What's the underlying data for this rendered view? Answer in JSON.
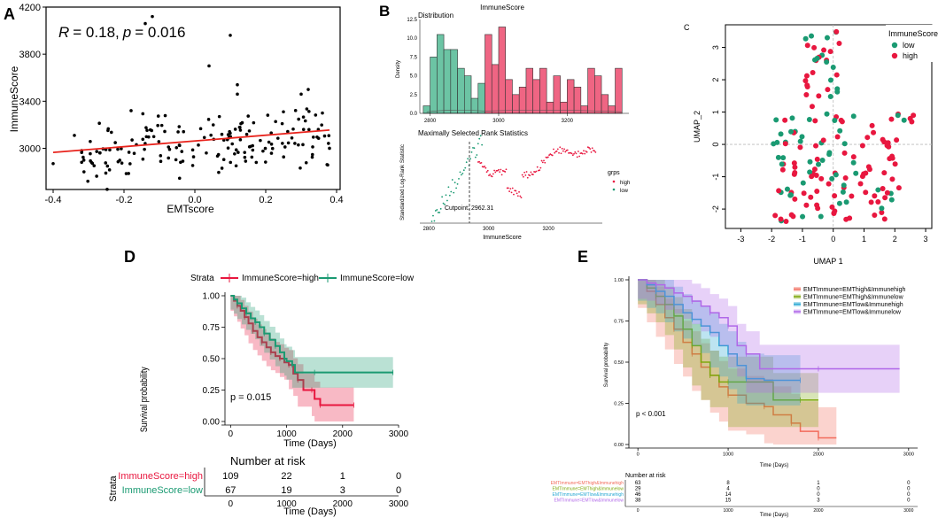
{
  "colors": {
    "high": "#e8173f",
    "low": "#1a9a72",
    "hist_high": "#ef6583",
    "hist_low": "#6cc4a4",
    "reg": "#e8231c",
    "g1": "#f26c5c",
    "g2": "#7fa80e",
    "g3": "#25a7d2",
    "g4": "#b068e8"
  },
  "chart_data": [
    {
      "panel": "A",
      "type": "scatter",
      "xlabel": "EMTscore",
      "ylabel": "ImmuneScore",
      "xlim": [
        -0.42,
        0.41
      ],
      "ylim": [
        2650,
        4200
      ],
      "xticks": [
        "-0.4",
        "-0.2",
        "0.0",
        "0.2",
        "0.4"
      ],
      "yticks": [
        "3000",
        "3400",
        "3800",
        "4200"
      ],
      "annotation_r": "R",
      "annotation_stats": "= 0.18,",
      "annotation_p": "p",
      "annotation_pval": "= 0.016",
      "regression": {
        "x": [
          -0.4,
          0.38
        ],
        "y": [
          2965,
          3155
        ]
      }
    },
    {
      "panel": "B",
      "subpanel": "distribution",
      "type": "bar",
      "title": "ImmuneScore",
      "subtitle": "Distribution",
      "ylabel": "Density",
      "xlim": [
        2770,
        3380
      ],
      "ylim": [
        0,
        12.5
      ],
      "xticks": [
        "2800",
        "3000",
        "3200"
      ],
      "yticks": [
        "0.0",
        "2.5",
        "5.0",
        "7.5",
        "10.0",
        "12.5"
      ],
      "bins_low": {
        "x": [
          2790,
          2810,
          2830,
          2850,
          2870,
          2890,
          2910,
          2930,
          2950
        ],
        "values": [
          1,
          7.5,
          10.5,
          8.5,
          8.5,
          6,
          5,
          2,
          4
        ]
      },
      "bins_high": {
        "x": [
          2970,
          2990,
          3010,
          3030,
          3050,
          3070,
          3090,
          3110,
          3130,
          3150,
          3170,
          3190,
          3210,
          3230,
          3250,
          3270,
          3290,
          3310,
          3330,
          3350
        ],
        "values": [
          10.5,
          6.5,
          11.5,
          4.5,
          2.5,
          3.5,
          6,
          4.5,
          6,
          1.5,
          5,
          1.5,
          4.5,
          3.5,
          1,
          6,
          5,
          2.5,
          1,
          6
        ]
      }
    },
    {
      "panel": "B",
      "subpanel": "maxstat",
      "type": "scatter",
      "title": "Maximally Selected Rank Statistics",
      "xlabel": "ImmuneScore",
      "ylabel": "Standardized Log-Rank Statistic",
      "cutpoint_label": "Cutpoint: 2962.31",
      "cutpoint": 2962.31,
      "xlim": [
        2770,
        3380
      ],
      "xticks": [
        "2800",
        "3000",
        "3200"
      ],
      "legend_title": "grps",
      "legend": [
        "high",
        "low"
      ]
    },
    {
      "panel": "C",
      "type": "scatter",
      "xlabel": "UMAP  1",
      "ylabel": "UMAP_2",
      "xlim": [
        -3.5,
        3.2
      ],
      "ylim": [
        -2.6,
        3.7
      ],
      "xticks": [
        "-3",
        "-2",
        "-1",
        "0",
        "1",
        "2",
        "3"
      ],
      "yticks": [
        "-2",
        "-1",
        "0",
        "1",
        "2",
        "3"
      ],
      "legend_title": "ImmuneScore",
      "legend": [
        "low",
        "high"
      ]
    },
    {
      "panel": "D",
      "type": "line",
      "title": "Strata",
      "legend": [
        "ImmuneScore=high",
        "ImmuneScore=low"
      ],
      "xlabel": "Time (Days)",
      "ylabel": "Survival probability",
      "pvalue": "p = 0.015",
      "xlim": [
        -100,
        3000
      ],
      "ylim": [
        0,
        1.0
      ],
      "xticks": [
        "0",
        "1000",
        "2000",
        "3000"
      ],
      "yticks": [
        "0.00",
        "0.25",
        "0.50",
        "0.75",
        "1.00"
      ],
      "series": [
        {
          "name": "ImmuneScore=high",
          "x": [
            0,
            60,
            120,
            180,
            250,
            320,
            400,
            480,
            560,
            640,
            720,
            800,
            880,
            960,
            1040,
            1120,
            1200,
            1300,
            1450,
            1500,
            1600,
            1800,
            2200
          ],
          "y": [
            1.0,
            0.96,
            0.92,
            0.88,
            0.83,
            0.78,
            0.72,
            0.67,
            0.63,
            0.59,
            0.55,
            0.52,
            0.5,
            0.47,
            0.45,
            0.38,
            0.33,
            0.25,
            0.25,
            0.18,
            0.13,
            0.13,
            0.13
          ]
        },
        {
          "name": "ImmuneScore=low",
          "x": [
            0,
            60,
            120,
            200,
            280,
            360,
            440,
            520,
            600,
            700,
            800,
            880,
            960,
            1000,
            1100,
            1150,
            1500,
            2000,
            2900
          ],
          "y": [
            1.0,
            0.97,
            0.94,
            0.9,
            0.86,
            0.82,
            0.79,
            0.75,
            0.7,
            0.65,
            0.6,
            0.55,
            0.5,
            0.48,
            0.45,
            0.39,
            0.39,
            0.39,
            0.39
          ]
        }
      ],
      "risk_table": {
        "title": "Number at risk",
        "strata_label": "Strata",
        "xlabel": "Time (Days)",
        "rows": [
          {
            "name": "ImmuneScore=high",
            "values": [
              "109",
              "22",
              "1",
              "0"
            ]
          },
          {
            "name": "ImmuneScore=low",
            "values": [
              "67",
              "19",
              "3",
              "0"
            ]
          }
        ]
      }
    },
    {
      "panel": "E",
      "type": "line",
      "legend": [
        "EMTImmune=EMThigh&Immunehigh",
        "EMTImmune=EMThigh&Immunelow",
        "EMTImmune=EMTlow&Immunehigh",
        "EMTImmune=EMTlow&Immunelow"
      ],
      "xlabel": "Time (Days)",
      "ylabel": "Survival probability",
      "pvalue": "p < 0.001",
      "xlim": [
        -100,
        3100
      ],
      "ylim": [
        0,
        1.0
      ],
      "xticks": [
        "0",
        "1000",
        "2000",
        "3000"
      ],
      "yticks": [
        "0.00",
        "0.25",
        "0.50",
        "0.75",
        "1.00"
      ],
      "series": [
        {
          "name": "EMTImmune=EMThigh&Immunehigh",
          "x": [
            0,
            100,
            200,
            300,
            400,
            500,
            600,
            700,
            800,
            900,
            1000,
            1200,
            1400,
            1500,
            1700,
            1800,
            2000,
            2200
          ],
          "y": [
            1.0,
            0.93,
            0.85,
            0.77,
            0.7,
            0.62,
            0.55,
            0.47,
            0.42,
            0.35,
            0.3,
            0.25,
            0.23,
            0.18,
            0.13,
            0.08,
            0.04,
            0.04
          ]
        },
        {
          "name": "EMTImmune=EMThigh&Immunelow",
          "x": [
            0,
            100,
            200,
            300,
            400,
            500,
            600,
            700,
            800,
            900,
            1000,
            1500,
            1800,
            2000
          ],
          "y": [
            1.0,
            0.95,
            0.9,
            0.85,
            0.78,
            0.7,
            0.6,
            0.5,
            0.42,
            0.38,
            0.38,
            0.27,
            0.27,
            0.27
          ]
        },
        {
          "name": "EMTImmune=EMTlow&Immunehigh",
          "x": [
            0,
            100,
            200,
            300,
            400,
            500,
            600,
            700,
            800,
            900,
            1000,
            1100,
            1200,
            1400,
            1800
          ],
          "y": [
            1.0,
            0.97,
            0.93,
            0.9,
            0.85,
            0.8,
            0.76,
            0.72,
            0.68,
            0.6,
            0.55,
            0.48,
            0.4,
            0.39,
            0.39
          ]
        },
        {
          "name": "EMTImmune=EMTlow&Immunelow",
          "x": [
            0,
            100,
            200,
            300,
            400,
            500,
            600,
            700,
            800,
            900,
            1000,
            1100,
            1200,
            1350,
            2000,
            2900
          ],
          "y": [
            1.0,
            0.98,
            0.97,
            0.95,
            0.92,
            0.9,
            0.87,
            0.84,
            0.8,
            0.77,
            0.72,
            0.6,
            0.55,
            0.46,
            0.46,
            0.46
          ]
        }
      ],
      "risk_table": {
        "title": "Number at risk",
        "xlabel": "Time (Days)",
        "rows": [
          {
            "name": "EMTImmune=EMThigh&Immunehigh",
            "values": [
              "63",
              "8",
              "1",
              "0"
            ]
          },
          {
            "name": "EMTImmune=EMThigh&Immunelow",
            "values": [
              "29",
              "4",
              "0",
              "0"
            ]
          },
          {
            "name": "EMTImmune=EMTlow&Immunehigh",
            "values": [
              "46",
              "14",
              "0",
              "0"
            ]
          },
          {
            "name": "EMTImmune=EMTlow&Immunelow",
            "values": [
              "38",
              "15",
              "3",
              "0"
            ]
          }
        ]
      }
    }
  ],
  "panel_labels": {
    "a": "A",
    "b": "B",
    "c": "C",
    "d": "D",
    "e": "E"
  }
}
